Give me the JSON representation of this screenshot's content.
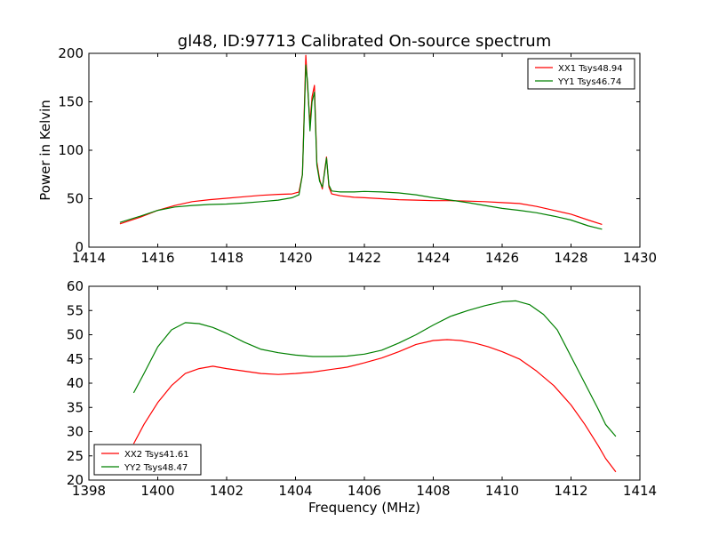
{
  "chart_data": [
    {
      "type": "line",
      "title": "gl48, ID:97713 Calibrated On-source spectrum",
      "xlabel": "",
      "ylabel": "Power in Kelvin",
      "xlim": [
        1414,
        1430
      ],
      "ylim": [
        0,
        200
      ],
      "xticks": [
        "1414",
        "1416",
        "1418",
        "1420",
        "1422",
        "1424",
        "1426",
        "1428",
        "1430"
      ],
      "yticks": [
        "0",
        "50",
        "100",
        "150",
        "200"
      ],
      "grid": false,
      "legend_position": "top-right",
      "series": [
        {
          "name": "XX1 Tsys48.94",
          "color": "#ff0000",
          "x": [
            1414.9,
            1415.5,
            1416.0,
            1416.5,
            1417.0,
            1417.5,
            1418.0,
            1418.5,
            1419.0,
            1419.5,
            1419.9,
            1420.1,
            1420.2,
            1420.3,
            1420.35,
            1420.42,
            1420.48,
            1420.55,
            1420.62,
            1420.7,
            1420.78,
            1420.85,
            1420.9,
            1420.97,
            1421.05,
            1421.3,
            1421.7,
            1422.0,
            1422.5,
            1423.0,
            1423.5,
            1424.0,
            1424.5,
            1425.0,
            1425.5,
            1426.0,
            1426.5,
            1427.0,
            1427.5,
            1428.0,
            1428.5,
            1428.9
          ],
          "y": [
            24,
            31,
            38,
            43,
            47,
            49,
            50.5,
            52,
            53.5,
            54.5,
            55,
            57,
            75,
            198,
            165,
            128,
            155,
            167,
            88,
            70,
            60,
            80,
            93,
            62,
            55,
            53,
            51.5,
            51,
            50,
            49,
            48.5,
            48,
            48,
            47.5,
            47,
            46,
            45,
            42,
            38,
            34,
            28,
            23.5
          ]
        },
        {
          "name": "YY1 Tsys46.74",
          "color": "#008000",
          "x": [
            1414.9,
            1415.5,
            1416.0,
            1416.5,
            1417.0,
            1417.5,
            1418.0,
            1418.5,
            1419.0,
            1419.5,
            1419.9,
            1420.1,
            1420.2,
            1420.3,
            1420.35,
            1420.42,
            1420.48,
            1420.55,
            1420.62,
            1420.7,
            1420.78,
            1420.85,
            1420.9,
            1420.97,
            1421.05,
            1421.3,
            1421.7,
            1422.0,
            1422.5,
            1423.0,
            1423.5,
            1424.0,
            1424.5,
            1425.0,
            1425.5,
            1426.0,
            1426.5,
            1427.0,
            1427.5,
            1428.0,
            1428.5,
            1428.9
          ],
          "y": [
            25.5,
            32,
            38,
            41.5,
            43,
            44,
            44.5,
            45.5,
            47,
            48.5,
            51,
            54,
            75,
            188,
            170,
            120,
            150,
            160,
            85,
            68,
            62,
            78,
            92,
            64,
            58,
            57,
            57,
            57.5,
            57,
            56,
            54,
            51,
            48.5,
            46,
            43,
            40,
            38,
            35.5,
            32,
            28,
            22,
            18.5
          ]
        }
      ]
    },
    {
      "type": "line",
      "title": "",
      "xlabel": "Frequency (MHz)",
      "ylabel": "",
      "xlim": [
        1398,
        1414
      ],
      "ylim": [
        20,
        60
      ],
      "xticks": [
        "1398",
        "1400",
        "1402",
        "1404",
        "1406",
        "1408",
        "1410",
        "1412",
        "1414"
      ],
      "yticks": [
        "20",
        "25",
        "30",
        "35",
        "40",
        "45",
        "50",
        "55",
        "60"
      ],
      "grid": false,
      "legend_position": "bottom-left",
      "series": [
        {
          "name": "XX2 Tsys41.61",
          "color": "#ff0000",
          "x": [
            1399.3,
            1399.6,
            1400.0,
            1400.4,
            1400.8,
            1401.2,
            1401.6,
            1402.0,
            1402.5,
            1403.0,
            1403.5,
            1404.0,
            1404.5,
            1405.0,
            1405.5,
            1406.0,
            1406.5,
            1407.0,
            1407.5,
            1408.0,
            1408.4,
            1408.8,
            1409.2,
            1409.6,
            1410.0,
            1410.5,
            1411.0,
            1411.5,
            1412.0,
            1412.4,
            1412.8,
            1413.0,
            1413.3
          ],
          "y": [
            27.5,
            31.5,
            36,
            39.5,
            42,
            43,
            43.5,
            43,
            42.5,
            42,
            41.8,
            42,
            42.3,
            42.8,
            43.3,
            44.2,
            45.2,
            46.5,
            48,
            48.8,
            49,
            48.8,
            48.3,
            47.5,
            46.5,
            45,
            42.5,
            39.5,
            35.5,
            31.5,
            27,
            24.5,
            21.7
          ]
        },
        {
          "name": "YY2 Tsys48.47",
          "color": "#008000",
          "x": [
            1399.3,
            1399.6,
            1400.0,
            1400.4,
            1400.8,
            1401.2,
            1401.6,
            1402.0,
            1402.5,
            1403.0,
            1403.5,
            1404.0,
            1404.5,
            1405.0,
            1405.5,
            1406.0,
            1406.5,
            1407.0,
            1407.5,
            1408.0,
            1408.5,
            1409.0,
            1409.5,
            1410.0,
            1410.4,
            1410.8,
            1411.2,
            1411.6,
            1412.0,
            1412.4,
            1412.8,
            1413.0,
            1413.3
          ],
          "y": [
            38,
            42,
            47.5,
            51,
            52.5,
            52.3,
            51.5,
            50.3,
            48.5,
            47,
            46.3,
            45.8,
            45.5,
            45.5,
            45.6,
            46,
            46.8,
            48.3,
            50,
            52,
            53.8,
            55,
            56,
            56.8,
            57,
            56.2,
            54.2,
            51,
            45.5,
            40,
            34.5,
            31.5,
            29
          ]
        }
      ]
    }
  ]
}
